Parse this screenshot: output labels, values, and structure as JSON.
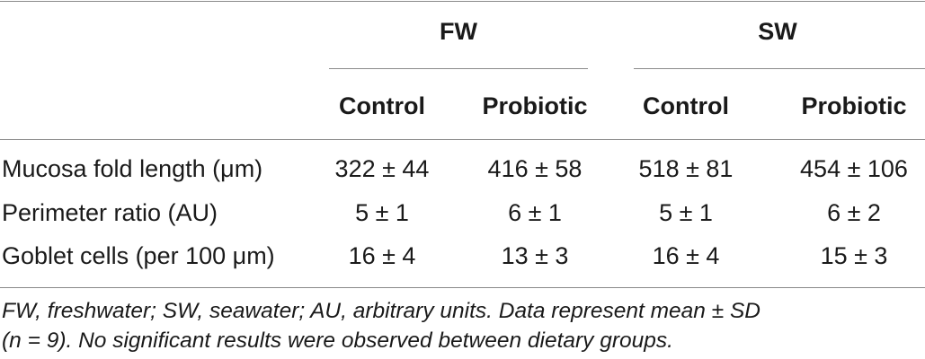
{
  "table": {
    "groups": [
      "FW",
      "SW"
    ],
    "subheaders": [
      "Control",
      "Probiotic",
      "Control",
      "Probiotic"
    ],
    "rows": [
      {
        "label": "Mucosa fold length (μm)",
        "values": [
          "322 ± 44",
          "416 ± 58",
          "518 ± 81",
          "454 ± 106"
        ]
      },
      {
        "label": "Perimeter ratio (AU)",
        "values": [
          "5 ± 1",
          "6 ± 1",
          "5 ± 1",
          "6 ± 2"
        ]
      },
      {
        "label": "Goblet cells (per 100 μm)",
        "values": [
          "16 ± 4",
          "13 ± 3",
          "16 ± 4",
          "15 ± 3"
        ]
      }
    ],
    "footnote": {
      "line1": "FW, freshwater; SW, seawater; AU, arbitrary units. Data represent mean ± SD",
      "line2": "(n = 9). No significant results were observed between dietary groups."
    }
  }
}
